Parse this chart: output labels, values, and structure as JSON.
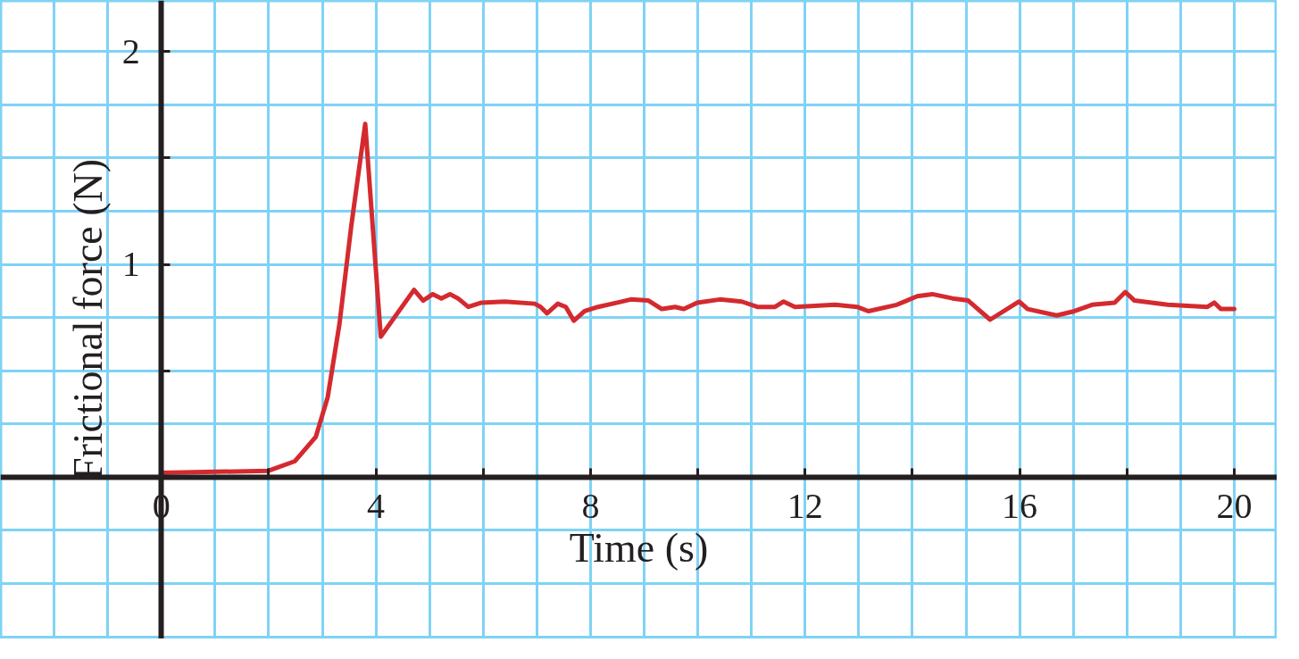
{
  "chart_data": {
    "type": "line",
    "xlabel": "Time (s)",
    "ylabel": "Frictional force (N)",
    "xlim": [
      -3,
      20.8
    ],
    "ylim": [
      -0.76,
      2.24
    ],
    "xticks": [
      {
        "value": 0,
        "label": "0"
      },
      {
        "value": 2,
        "label": null
      },
      4,
      {
        "value": 6,
        "label": null
      },
      8,
      {
        "value": 10,
        "label": null
      },
      12,
      {
        "value": 14,
        "label": null
      },
      16,
      {
        "value": 18,
        "label": null
      },
      20
    ],
    "yticks": [
      {
        "value": 0.5,
        "label": null
      },
      1,
      {
        "value": 1.5,
        "label": null
      },
      2
    ],
    "grid": true,
    "line_style": "solid",
    "marker": "none",
    "series": [
      {
        "color": "#d42a2f",
        "x": [
          0,
          2.0,
          2.49,
          2.88,
          3.1,
          3.32,
          3.54,
          3.8,
          4.09,
          4.71,
          4.88,
          5.06,
          5.22,
          5.38,
          5.53,
          5.72,
          5.97,
          6.4,
          6.96,
          7.07,
          7.19,
          7.39,
          7.54,
          7.69,
          7.89,
          8.14,
          8.5,
          8.75,
          9.08,
          9.33,
          9.58,
          9.74,
          9.99,
          10.41,
          10.82,
          11.11,
          11.44,
          11.6,
          11.81,
          12.56,
          12.97,
          13.18,
          13.71,
          14.09,
          14.37,
          14.75,
          15.04,
          15.45,
          15.99,
          16.15,
          16.69,
          17.02,
          17.35,
          17.77,
          17.97,
          18.14,
          18.76,
          19.5,
          19.63,
          19.75,
          20.0
        ],
        "values": [
          0.02,
          0.03,
          0.075,
          0.19,
          0.375,
          0.72,
          1.18,
          1.66,
          0.66,
          0.88,
          0.83,
          0.86,
          0.84,
          0.86,
          0.84,
          0.8,
          0.82,
          0.825,
          0.815,
          0.8,
          0.77,
          0.815,
          0.8,
          0.735,
          0.78,
          0.8,
          0.82,
          0.835,
          0.83,
          0.79,
          0.8,
          0.79,
          0.82,
          0.835,
          0.825,
          0.8,
          0.8,
          0.825,
          0.8,
          0.81,
          0.8,
          0.78,
          0.81,
          0.85,
          0.86,
          0.84,
          0.83,
          0.74,
          0.825,
          0.79,
          0.76,
          0.78,
          0.81,
          0.82,
          0.87,
          0.83,
          0.81,
          0.8,
          0.82,
          0.79,
          0.79
        ]
      }
    ]
  }
}
